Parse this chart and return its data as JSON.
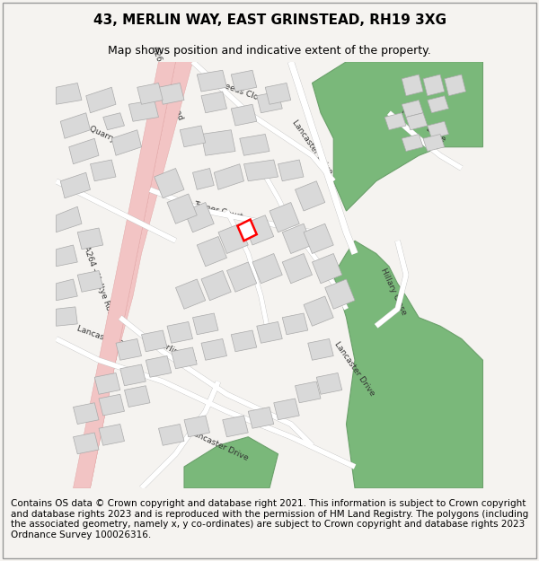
{
  "title": "43, MERLIN WAY, EAST GRINSTEAD, RH19 3XG",
  "subtitle": "Map shows position and indicative extent of the property.",
  "footer": "Contains OS data © Crown copyright and database right 2021. This information is subject to Crown copyright and database rights 2023 and is reproduced with the permission of HM Land Registry. The polygons (including the associated geometry, namely x, y co-ordinates) are subject to Crown copyright and database rights 2023 Ordnance Survey 100026316.",
  "bg_color": "#f5f3f0",
  "map_bg": "#ffffff",
  "road_color": "#ffffff",
  "main_road_color": "#f2c4c4",
  "building_color": "#d9d9d9",
  "building_edge": "#aaaaaa",
  "green_color": "#7ab87a",
  "green_edge": "#6aa06a",
  "highlight_color": "#ff0000",
  "map_border": "#cccccc",
  "title_fontsize": 11,
  "subtitle_fontsize": 9,
  "footer_fontsize": 7.5
}
